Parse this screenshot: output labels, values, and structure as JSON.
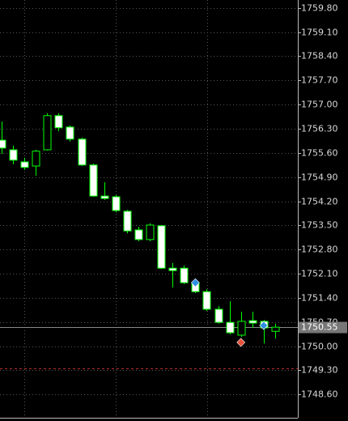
{
  "chart_data": {
    "type": "candlestick",
    "open": [
      1755.97,
      1755.69,
      1755.34,
      1755.22,
      1755.69,
      1756.68,
      1756.35,
      1756.0,
      1755.25,
      1754.35,
      1754.33,
      1753.91,
      1753.37,
      1753.09,
      1753.49,
      1752.26,
      1752.26,
      1751.84,
      1751.58,
      1751.07,
      1750.69,
      1750.32,
      1750.74,
      1750.72,
      1750.43
    ],
    "high": [
      1756.51,
      1755.81,
      1755.46,
      1755.69,
      1756.75,
      1756.75,
      1756.4,
      1756.04,
      1755.29,
      1754.75,
      1754.38,
      1753.95,
      1753.46,
      1753.56,
      1753.51,
      1752.41,
      1752.34,
      1751.94,
      1751.65,
      1751.16,
      1751.3,
      1751.0,
      1751.0,
      1750.76,
      1750.65
    ],
    "low": [
      1755.57,
      1755.27,
      1755.11,
      1754.94,
      1755.67,
      1756.23,
      1755.93,
      1755.22,
      1754.33,
      1754.24,
      1753.88,
      1753.27,
      1753.04,
      1753.04,
      1752.24,
      1751.7,
      1751.8,
      1751.54,
      1751.02,
      1750.65,
      1750.34,
      1750.27,
      1750.53,
      1750.08,
      1750.22
    ],
    "close": [
      1755.74,
      1755.39,
      1755.18,
      1755.65,
      1756.68,
      1756.33,
      1756.0,
      1755.25,
      1754.35,
      1754.28,
      1753.93,
      1753.34,
      1753.09,
      1753.51,
      1752.26,
      1752.19,
      1751.84,
      1751.58,
      1751.07,
      1750.69,
      1750.39,
      1750.72,
      1750.67,
      1750.53,
      1750.55
    ],
    "up_color": "#000000",
    "down_color": "#ffffff",
    "wick_color": "#00ff00",
    "markers": [
      {
        "index": 17,
        "price": 1751.84,
        "color": "#2f8fe0"
      },
      {
        "index": 21,
        "price": 1750.11,
        "color": "#e8503a"
      },
      {
        "index": 23,
        "price": 1750.6,
        "color": "#2f8fe0"
      }
    ],
    "last_price": {
      "value": 1750.55,
      "label": "1750.55"
    },
    "level_line": {
      "value": 1749.35,
      "color": "#c03030"
    },
    "ylim": [
      1747.95,
      1760.03
    ],
    "yticks": [
      {
        "value": 1759.8,
        "label": "1759.80"
      },
      {
        "value": 1759.1,
        "label": "1759.10"
      },
      {
        "value": 1758.4,
        "label": "1758.40"
      },
      {
        "value": 1757.7,
        "label": "1757.70"
      },
      {
        "value": 1757.0,
        "label": "1757.00"
      },
      {
        "value": 1756.3,
        "label": "1756.30"
      },
      {
        "value": 1755.6,
        "label": "1755.60"
      },
      {
        "value": 1754.9,
        "label": "1754.90"
      },
      {
        "value": 1754.2,
        "label": "1754.20"
      },
      {
        "value": 1753.5,
        "label": "1753.50"
      },
      {
        "value": 1752.8,
        "label": "1752.80"
      },
      {
        "value": 1752.1,
        "label": "1752.10"
      },
      {
        "value": 1751.4,
        "label": "1751.40"
      },
      {
        "value": 1750.7,
        "label": "1750.70"
      },
      {
        "value": 1750.0,
        "label": "1750.00"
      },
      {
        "value": 1749.3,
        "label": "1749.30"
      },
      {
        "value": 1748.6,
        "label": "1748.60"
      }
    ],
    "grid": true
  }
}
